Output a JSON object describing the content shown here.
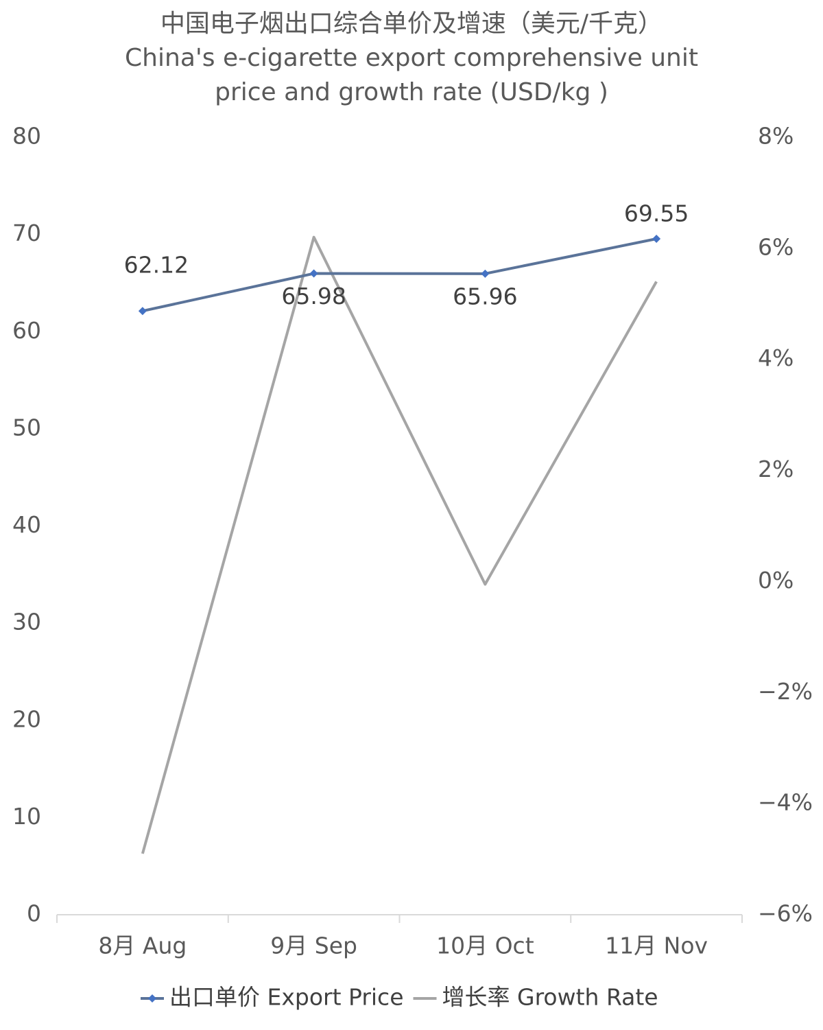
{
  "chart_data": {
    "type": "line",
    "title": "中国电子烟出口综合单价及增速（美元/千克）",
    "subtitle": "China's e-cigarette export comprehensive unit price and growth rate (USD/kg )",
    "categories": [
      "8月 Aug",
      "9月 Sep",
      "10月 Oct",
      "11月 Nov"
    ],
    "series": [
      {
        "name": "出口单价 Export Price",
        "color": "#5a7399",
        "marker_color": "#4472c4",
        "values": [
          62.12,
          65.98,
          65.96,
          69.55
        ]
      },
      {
        "name": "增长率 Growth Rate",
        "color": "#a5a5a5",
        "axis": "y2",
        "values": [
          -4.9,
          6.2,
          -0.05,
          5.4
        ]
      }
    ],
    "ylim": [
      0,
      80
    ],
    "yticks": [
      0,
      10,
      20,
      30,
      40,
      50,
      60,
      70,
      80
    ],
    "y2lim": [
      -6,
      8
    ],
    "y2ticks": [
      {
        "value": -6,
        "label": "−6%"
      },
      {
        "value": -4,
        "label": "−4%"
      },
      {
        "value": -2,
        "label": "−2%"
      },
      {
        "value": 0,
        "label": "0%"
      },
      {
        "value": 2,
        "label": "2%"
      },
      {
        "value": 4,
        "label": "4%"
      },
      {
        "value": 6,
        "label": "6%"
      },
      {
        "value": 8,
        "label": "8%"
      }
    ],
    "legend": "bottom"
  }
}
